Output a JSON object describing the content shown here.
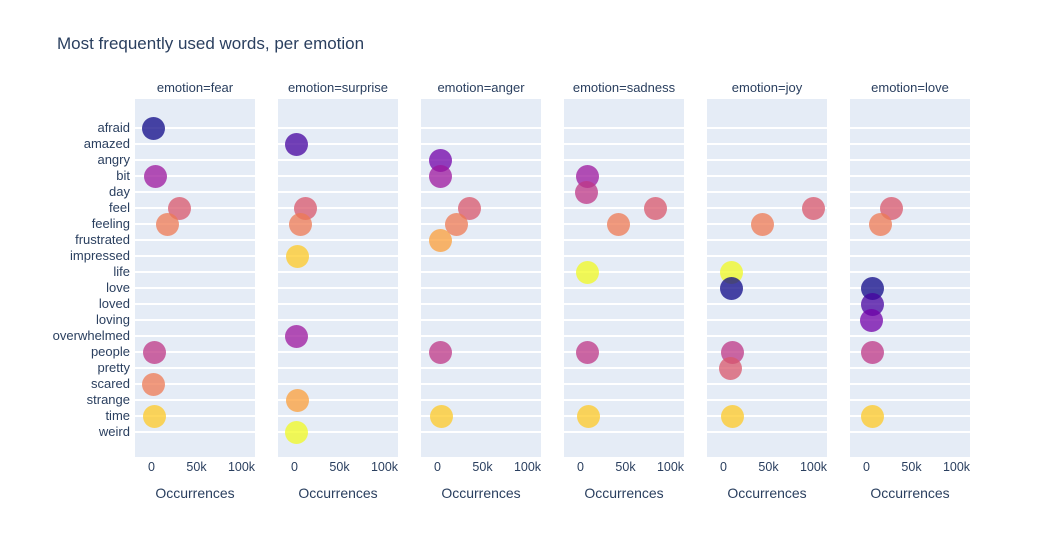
{
  "title": "Most frequently used words, per emotion",
  "colors": {
    "text": "#2a3f5f",
    "panel_bg": "#e5ecf6",
    "gridline": "#ffffff",
    "page_bg": "#ffffff"
  },
  "chart_data": {
    "type": "scatter",
    "title": "Most frequently used words, per emotion",
    "xlabel": "Occurrences",
    "ylabel": "",
    "facet_field": "emotion",
    "grid": "horizontal-white-on-light-panel",
    "legend_position": "none",
    "marker_opacity": 0.75,
    "marker_size_px": 23,
    "xlim": [
      -18000,
      115000
    ],
    "x_ticks": [
      {
        "label": "0",
        "value": 0
      },
      {
        "label": "50k",
        "value": 50000
      },
      {
        "label": "100k",
        "value": 100000
      }
    ],
    "words": [
      "afraid",
      "amazed",
      "angry",
      "bit",
      "day",
      "feel",
      "feeling",
      "frustrated",
      "impressed",
      "life",
      "love",
      "loved",
      "loving",
      "overwhelmed",
      "people",
      "pretty",
      "scared",
      "strange",
      "time",
      "weird"
    ],
    "palette_plasma10": [
      "#0d0887",
      "#46039f",
      "#7201a8",
      "#9c179e",
      "#bd3786",
      "#d8576b",
      "#ed7953",
      "#fb9f3a",
      "#fdca26",
      "#f0f921"
    ],
    "color_rule": "color = palette_plasma10[word_index mod 10], alpha 0.75",
    "facets": [
      {
        "label": "emotion=fear",
        "emotion": "fear",
        "points": [
          {
            "word": "afraid",
            "occurrences": 2500
          },
          {
            "word": "bit",
            "occurrences": 4000
          },
          {
            "word": "feel",
            "occurrences": 31000
          },
          {
            "word": "feeling",
            "occurrences": 18000
          },
          {
            "word": "people",
            "occurrences": 3000
          },
          {
            "word": "scared",
            "occurrences": 2000
          },
          {
            "word": "time",
            "occurrences": 3000
          }
        ]
      },
      {
        "label": "emotion=surprise",
        "emotion": "surprise",
        "points": [
          {
            "word": "amazed",
            "occurrences": 2500
          },
          {
            "word": "feel",
            "occurrences": 12000
          },
          {
            "word": "feeling",
            "occurrences": 7000
          },
          {
            "word": "impressed",
            "occurrences": 3000
          },
          {
            "word": "overwhelmed",
            "occurrences": 2500
          },
          {
            "word": "strange",
            "occurrences": 3000
          },
          {
            "word": "weird",
            "occurrences": 2500
          }
        ]
      },
      {
        "label": "emotion=anger",
        "emotion": "anger",
        "points": [
          {
            "word": "angry",
            "occurrences": 3500
          },
          {
            "word": "bit",
            "occurrences": 3000
          },
          {
            "word": "feel",
            "occurrences": 36000
          },
          {
            "word": "feeling",
            "occurrences": 21000
          },
          {
            "word": "frustrated",
            "occurrences": 3000
          },
          {
            "word": "people",
            "occurrences": 3000
          },
          {
            "word": "time",
            "occurrences": 4000
          }
        ]
      },
      {
        "label": "emotion=sadness",
        "emotion": "sadness",
        "points": [
          {
            "word": "bit",
            "occurrences": 7500
          },
          {
            "word": "day",
            "occurrences": 7000
          },
          {
            "word": "feel",
            "occurrences": 83000
          },
          {
            "word": "feeling",
            "occurrences": 42000
          },
          {
            "word": "life",
            "occurrences": 7500
          },
          {
            "word": "people",
            "occurrences": 8000
          },
          {
            "word": "time",
            "occurrences": 8500
          }
        ]
      },
      {
        "label": "emotion=joy",
        "emotion": "joy",
        "points": [
          {
            "word": "feel",
            "occurrences": 100000
          },
          {
            "word": "feeling",
            "occurrences": 43000
          },
          {
            "word": "life",
            "occurrences": 8500
          },
          {
            "word": "love",
            "occurrences": 8500
          },
          {
            "word": "people",
            "occurrences": 9500
          },
          {
            "word": "pretty",
            "occurrences": 8000
          },
          {
            "word": "time",
            "occurrences": 10500
          }
        ]
      },
      {
        "label": "emotion=love",
        "emotion": "love",
        "points": [
          {
            "word": "feel",
            "occurrences": 28000
          },
          {
            "word": "feeling",
            "occurrences": 15000
          },
          {
            "word": "love",
            "occurrences": 6500
          },
          {
            "word": "loved",
            "occurrences": 6500
          },
          {
            "word": "loving",
            "occurrences": 6000
          },
          {
            "word": "people",
            "occurrences": 6500
          },
          {
            "word": "time",
            "occurrences": 6500
          }
        ]
      }
    ]
  }
}
